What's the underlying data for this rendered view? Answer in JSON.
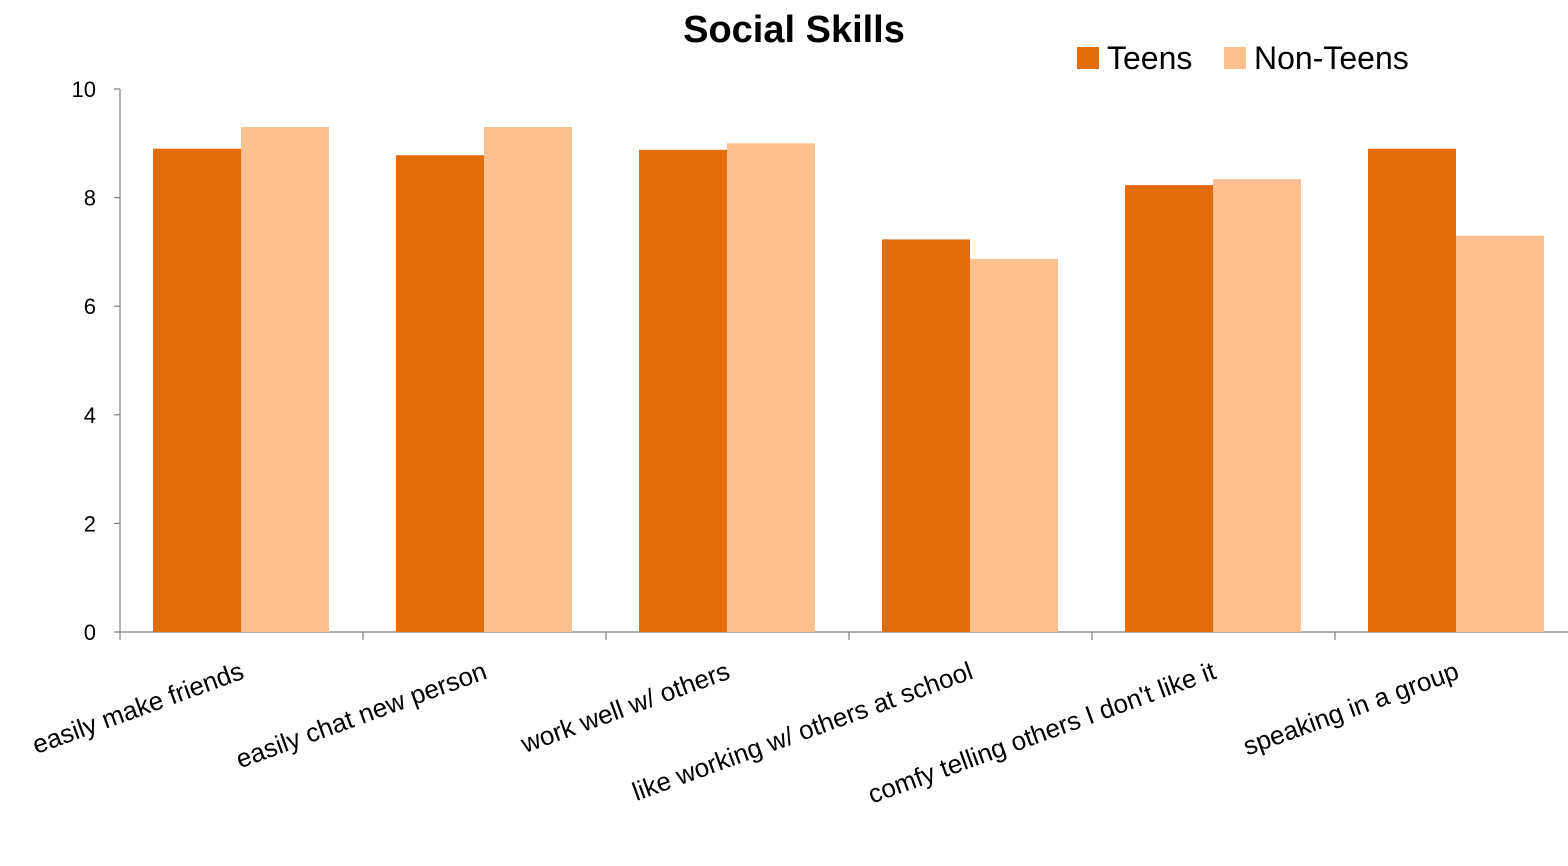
{
  "chart_data": {
    "type": "bar",
    "title": "Social Skills",
    "xlabel": "",
    "ylabel": "",
    "ylim": [
      0,
      10
    ],
    "yticks": [
      "0",
      "2",
      "4",
      "6",
      "8",
      "10"
    ],
    "grid": false,
    "legend_position": "top-right",
    "categories": [
      "easily make friends",
      "easily chat new person",
      "work well w/ others",
      "like working w/ others at school",
      "comfy telling others I don't like it",
      "speaking in a group"
    ],
    "series": [
      {
        "name": "Teens",
        "color": "#E36C0A",
        "values": [
          8.9,
          8.78,
          8.88,
          7.23,
          8.23,
          8.9
        ]
      },
      {
        "name": "Non-Teens",
        "color": "#FAC090",
        "values": [
          9.3,
          9.3,
          9.0,
          6.87,
          8.34,
          7.3
        ]
      }
    ]
  }
}
